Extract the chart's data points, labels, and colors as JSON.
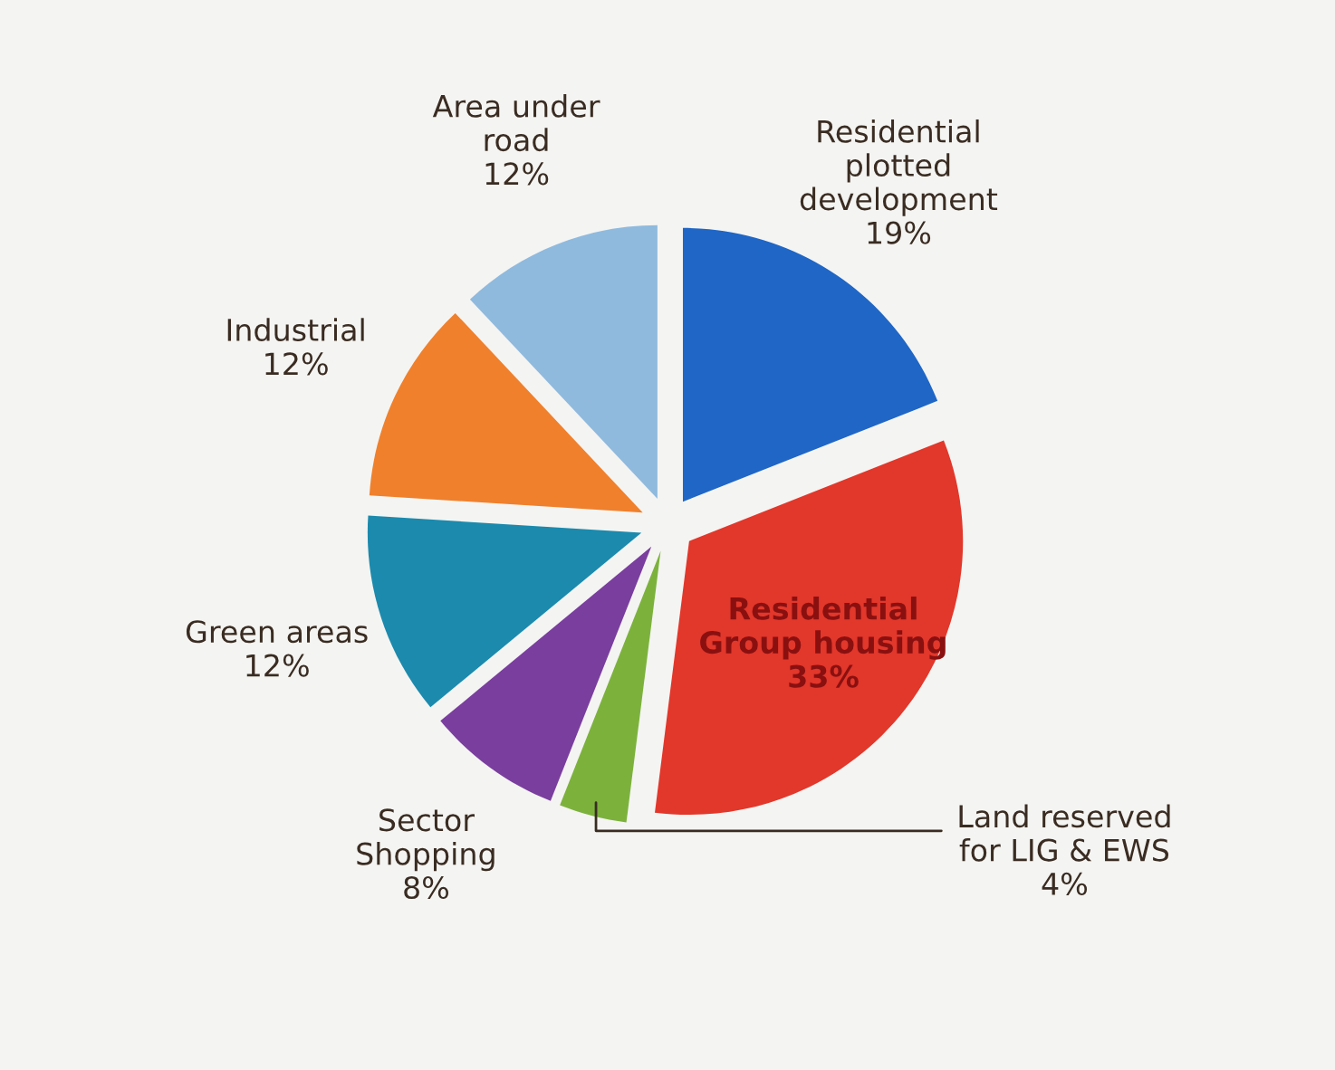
{
  "chart_data": {
    "type": "pie",
    "categories": [
      "Residential\nplotted\ndevelopment",
      "Residential\nGroup housing",
      "Land reserved\nfor LIG & EWS",
      "Sector\nShopping",
      "Green areas",
      "Industrial",
      "Area under\nroad"
    ],
    "values": [
      19,
      33,
      4,
      8,
      12,
      12,
      12
    ],
    "value_labels": [
      "19%",
      "33%",
      "4%",
      "8%",
      "12%",
      "12%",
      "12%"
    ],
    "colors": [
      "#1f66c6",
      "#e2372b",
      "#7cb23c",
      "#7a3e9e",
      "#1b8aad",
      "#f0802c",
      "#8fbade"
    ]
  }
}
